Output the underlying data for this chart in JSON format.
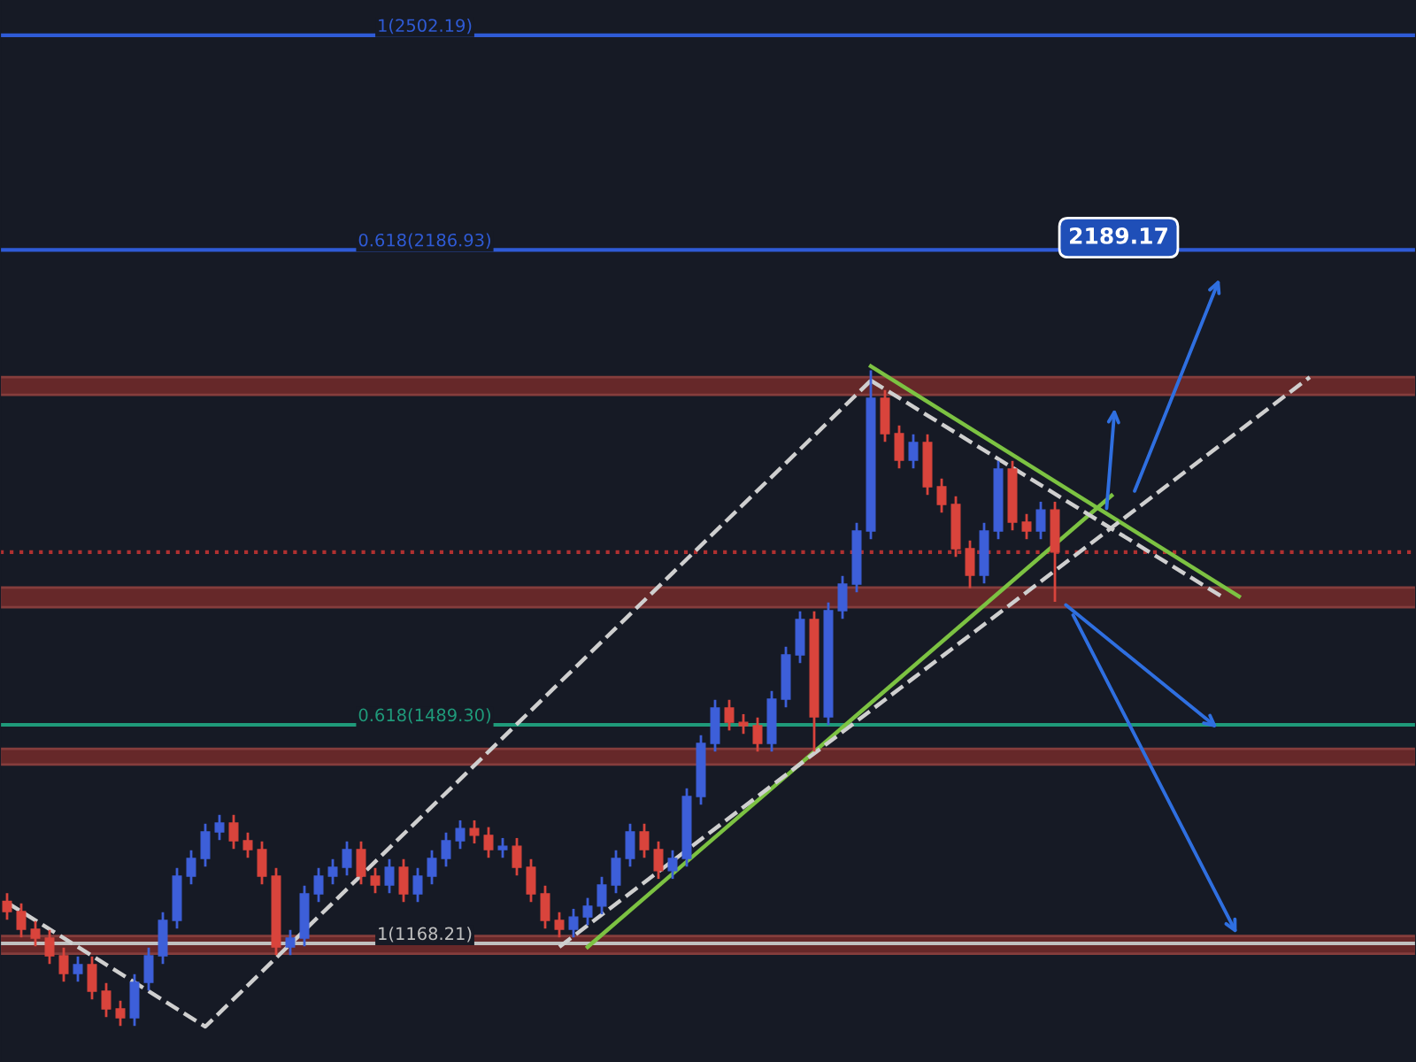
{
  "chart_data": {
    "type": "candlestick",
    "categories": [
      null,
      null,
      null,
      null,
      null,
      null,
      null,
      null,
      null,
      null,
      null,
      null,
      null,
      null,
      null,
      null,
      null,
      null,
      null,
      null,
      null,
      null,
      null,
      null,
      null,
      null,
      null,
      null,
      null,
      null,
      null,
      null,
      null,
      null,
      null,
      null,
      null,
      null,
      null,
      null,
      null,
      null,
      null,
      null,
      null,
      null,
      null,
      null,
      null,
      null,
      null,
      null,
      null,
      null,
      null,
      null,
      null,
      null,
      null,
      null,
      null,
      null,
      null,
      null,
      null,
      null,
      null,
      null,
      null,
      null,
      null,
      null,
      null,
      null,
      null,
      null,
      null,
      null,
      null,
      null,
      null,
      null,
      null,
      null,
      null,
      null,
      null,
      null,
      null,
      null,
      null,
      null,
      null,
      null,
      null,
      null,
      null,
      null,
      null,
      null
    ],
    "ohlc": [
      [
        1230,
        1242,
        1203,
        1215
      ],
      [
        1215,
        1227,
        1177,
        1189
      ],
      [
        1189,
        1201,
        1164,
        1176
      ],
      [
        1176,
        1188,
        1138,
        1150
      ],
      [
        1150,
        1162,
        1112,
        1124
      ],
      [
        1124,
        1149,
        1112,
        1137
      ],
      [
        1137,
        1149,
        1086,
        1098
      ],
      [
        1098,
        1110,
        1060,
        1072
      ],
      [
        1072,
        1084,
        1047,
        1059
      ],
      [
        1059,
        1123,
        1047,
        1111
      ],
      [
        1111,
        1162,
        1099,
        1150
      ],
      [
        1150,
        1214,
        1138,
        1202
      ],
      [
        1202,
        1279,
        1190,
        1267
      ],
      [
        1267,
        1305,
        1255,
        1293
      ],
      [
        1293,
        1344,
        1281,
        1332
      ],
      [
        1332,
        1357,
        1320,
        1345
      ],
      [
        1345,
        1357,
        1307,
        1319
      ],
      [
        1319,
        1331,
        1294,
        1306
      ],
      [
        1306,
        1318,
        1255,
        1267
      ],
      [
        1267,
        1279,
        1151,
        1163
      ],
      [
        1163,
        1188,
        1151,
        1176
      ],
      [
        1176,
        1253,
        1164,
        1241
      ],
      [
        1241,
        1279,
        1229,
        1267
      ],
      [
        1267,
        1292,
        1255,
        1280
      ],
      [
        1280,
        1318,
        1268,
        1306
      ],
      [
        1306,
        1318,
        1255,
        1267
      ],
      [
        1267,
        1279,
        1242,
        1254
      ],
      [
        1254,
        1292,
        1242,
        1280
      ],
      [
        1280,
        1292,
        1229,
        1241
      ],
      [
        1241,
        1279,
        1229,
        1267
      ],
      [
        1267,
        1305,
        1255,
        1293
      ],
      [
        1293,
        1331,
        1281,
        1319
      ],
      [
        1319,
        1349,
        1307,
        1337
      ],
      [
        1337,
        1349,
        1315,
        1327
      ],
      [
        1327,
        1339,
        1294,
        1306
      ],
      [
        1306,
        1323,
        1294,
        1311
      ],
      [
        1311,
        1323,
        1268,
        1280
      ],
      [
        1280,
        1292,
        1229,
        1241
      ],
      [
        1241,
        1253,
        1190,
        1202
      ],
      [
        1202,
        1214,
        1177,
        1189
      ],
      [
        1189,
        1219,
        1177,
        1207
      ],
      [
        1207,
        1235,
        1195,
        1223
      ],
      [
        1223,
        1266,
        1211,
        1254
      ],
      [
        1254,
        1305,
        1242,
        1293
      ],
      [
        1293,
        1344,
        1281,
        1332
      ],
      [
        1332,
        1344,
        1294,
        1306
      ],
      [
        1306,
        1318,
        1263,
        1275
      ],
      [
        1275,
        1305,
        1263,
        1293
      ],
      [
        1293,
        1396,
        1281,
        1384
      ],
      [
        1384,
        1474,
        1372,
        1462
      ],
      [
        1462,
        1526,
        1450,
        1514
      ],
      [
        1514,
        1526,
        1481,
        1493
      ],
      [
        1493,
        1505,
        1476,
        1488
      ],
      [
        1488,
        1500,
        1450,
        1462
      ],
      [
        1462,
        1539,
        1450,
        1527
      ],
      [
        1527,
        1604,
        1515,
        1592
      ],
      [
        1592,
        1656,
        1580,
        1644
      ],
      [
        1644,
        1656,
        1450,
        1501
      ],
      [
        1501,
        1669,
        1489,
        1657
      ],
      [
        1657,
        1708,
        1645,
        1696
      ],
      [
        1696,
        1786,
        1684,
        1774
      ],
      [
        1774,
        2010,
        1762,
        1969
      ],
      [
        1969,
        1981,
        1905,
        1917
      ],
      [
        1917,
        1929,
        1866,
        1878
      ],
      [
        1878,
        1916,
        1866,
        1904
      ],
      [
        1904,
        1916,
        1827,
        1839
      ],
      [
        1839,
        1851,
        1801,
        1813
      ],
      [
        1813,
        1825,
        1736,
        1748
      ],
      [
        1748,
        1760,
        1690,
        1709
      ],
      [
        1709,
        1786,
        1697,
        1774
      ],
      [
        1774,
        1877,
        1762,
        1865
      ],
      [
        1865,
        1877,
        1775,
        1787
      ],
      [
        1787,
        1799,
        1762,
        1774
      ],
      [
        1774,
        1817,
        1762,
        1805
      ],
      [
        1805,
        1817,
        1670,
        1743
      ],
      null,
      null,
      null,
      null,
      null,
      null,
      null,
      null,
      null,
      null,
      null,
      null,
      null,
      null,
      null,
      null,
      null,
      null,
      null,
      null,
      null,
      null,
      null,
      null,
      null
    ],
    "series": [
      {
        "type": "line",
        "color": "#7cc242",
        "values": [
          null,
          null,
          null,
          null,
          null,
          null,
          null,
          null,
          null,
          null,
          null,
          null,
          null,
          null,
          null,
          null,
          null,
          null,
          null,
          null,
          null,
          null,
          null,
          null,
          null,
          null,
          null,
          null,
          null,
          null,
          null,
          null,
          null,
          null,
          null,
          null,
          null,
          null,
          null,
          null,
          null,
          1163,
          null,
          null,
          null,
          null,
          null,
          null,
          null,
          null,
          null,
          null,
          null,
          null,
          null,
          null,
          null,
          null,
          null,
          null,
          null,
          null,
          null,
          null,
          null,
          null,
          null,
          null,
          null,
          null,
          null,
          null,
          null,
          null,
          null,
          null,
          null,
          null,
          1826,
          null,
          null,
          null,
          null,
          null,
          null,
          null,
          null,
          null,
          null,
          null,
          null,
          null,
          null,
          null,
          null,
          null,
          null,
          null,
          null,
          null
        ]
      },
      {
        "type": "line",
        "color": "#7cc242",
        "values": [
          null,
          null,
          null,
          null,
          null,
          null,
          null,
          null,
          null,
          null,
          null,
          null,
          null,
          null,
          null,
          null,
          null,
          null,
          null,
          null,
          null,
          null,
          null,
          null,
          null,
          null,
          null,
          null,
          null,
          null,
          null,
          null,
          null,
          null,
          null,
          null,
          null,
          null,
          null,
          null,
          null,
          null,
          null,
          null,
          null,
          null,
          null,
          null,
          null,
          null,
          null,
          null,
          null,
          null,
          null,
          null,
          null,
          null,
          null,
          null,
          null,
          2016,
          null,
          null,
          null,
          null,
          null,
          null,
          null,
          null,
          null,
          null,
          null,
          null,
          null,
          null,
          null,
          null,
          null,
          null,
          null,
          null,
          null,
          null,
          null,
          null,
          null,
          1678,
          null,
          null,
          null,
          null,
          null,
          null,
          null,
          null,
          null,
          null,
          null,
          null
        ]
      },
      {
        "type": "line",
        "color": "#cfcfcf",
        "line_style": "dashed",
        "values": [
          1228,
          null,
          null,
          null,
          null,
          null,
          null,
          null,
          null,
          null,
          null,
          null,
          null,
          null,
          1046,
          null,
          null,
          null,
          null,
          null,
          null,
          null,
          null,
          null,
          null,
          null,
          null,
          null,
          null,
          null,
          null,
          null,
          null,
          null,
          null,
          null,
          null,
          null,
          null,
          null,
          null,
          null,
          null,
          null,
          null,
          null,
          null,
          null,
          null,
          null,
          null,
          null,
          null,
          null,
          null,
          null,
          null,
          null,
          null,
          null,
          null,
          1995,
          null,
          null,
          null,
          null,
          null,
          null,
          null,
          null,
          null,
          null,
          null,
          null,
          null,
          null,
          null,
          null,
          null,
          null,
          null,
          null,
          null,
          null,
          null,
          null,
          null,
          null,
          null,
          null,
          null,
          null,
          null,
          null,
          null,
          null,
          null,
          null,
          null,
          null
        ]
      },
      {
        "type": "line",
        "color": "#cfcfcf",
        "line_style": "dashed",
        "values": [
          null,
          null,
          null,
          null,
          null,
          null,
          null,
          null,
          null,
          null,
          null,
          null,
          null,
          null,
          null,
          null,
          null,
          null,
          null,
          null,
          null,
          null,
          null,
          null,
          null,
          null,
          null,
          null,
          null,
          null,
          null,
          null,
          null,
          null,
          null,
          null,
          null,
          null,
          null,
          1163,
          null,
          null,
          null,
          null,
          null,
          null,
          null,
          null,
          null,
          null,
          null,
          null,
          null,
          null,
          null,
          null,
          null,
          null,
          null,
          null,
          null,
          null,
          null,
          null,
          null,
          null,
          null,
          null,
          null,
          null,
          null,
          null,
          null,
          null,
          null,
          null,
          null,
          null,
          null,
          null,
          null,
          null,
          null,
          null,
          null,
          null,
          null,
          null,
          null,
          null,
          null,
          null,
          2000,
          null,
          null,
          null,
          null,
          null,
          null,
          null
        ]
      },
      {
        "type": "line",
        "color": "#cfcfcf",
        "line_style": "dashed",
        "values": [
          null,
          null,
          null,
          null,
          null,
          null,
          null,
          null,
          null,
          null,
          null,
          null,
          null,
          null,
          null,
          null,
          null,
          null,
          null,
          null,
          null,
          null,
          null,
          null,
          null,
          null,
          null,
          null,
          null,
          null,
          null,
          null,
          null,
          null,
          null,
          null,
          null,
          null,
          null,
          null,
          null,
          null,
          null,
          null,
          null,
          null,
          null,
          null,
          null,
          null,
          null,
          null,
          null,
          null,
          null,
          null,
          null,
          null,
          null,
          null,
          null,
          1995,
          null,
          null,
          null,
          null,
          null,
          null,
          null,
          null,
          null,
          null,
          null,
          null,
          null,
          null,
          null,
          null,
          null,
          null,
          null,
          null,
          null,
          null,
          null,
          null,
          1675,
          null,
          null,
          null,
          null,
          null,
          null,
          null,
          null,
          null,
          null,
          null,
          null,
          null
        ]
      }
    ],
    "ref_lines": [
      {
        "axis": "y",
        "value": 2502.19,
        "label": "1(2502.19)",
        "color": "#2f5bd6"
      },
      {
        "axis": "y",
        "value": 2186.93,
        "label": "0.618(2186.93)",
        "color": "#2f5bd6"
      },
      {
        "axis": "y",
        "value": 1489.3,
        "label": "0.618(1489.30)",
        "color": "#1f9a7a"
      },
      {
        "axis": "y",
        "value": 1168.21,
        "label": "1(1168.21)",
        "color": "#c0c0c0"
      },
      {
        "axis": "y",
        "value": 1743,
        "color": "#b03030",
        "line_style": "dotted"
      }
    ],
    "bands": [
      {
        "axis": "y",
        "from": 1974,
        "to": 2000,
        "color": "#a8352e"
      },
      {
        "axis": "y",
        "from": 1662,
        "to": 1691,
        "color": "#a8352e"
      },
      {
        "axis": "y",
        "from": 1431,
        "to": 1454,
        "color": "#a8352e"
      },
      {
        "axis": "y",
        "from": 1153,
        "to": 1179,
        "color": "#a8352e"
      }
    ],
    "annotations": [
      {
        "text": "2189.17",
        "y": 2189.17
      }
    ],
    "ylim": [
      994,
      2554
    ],
    "tick_labels": false
  }
}
